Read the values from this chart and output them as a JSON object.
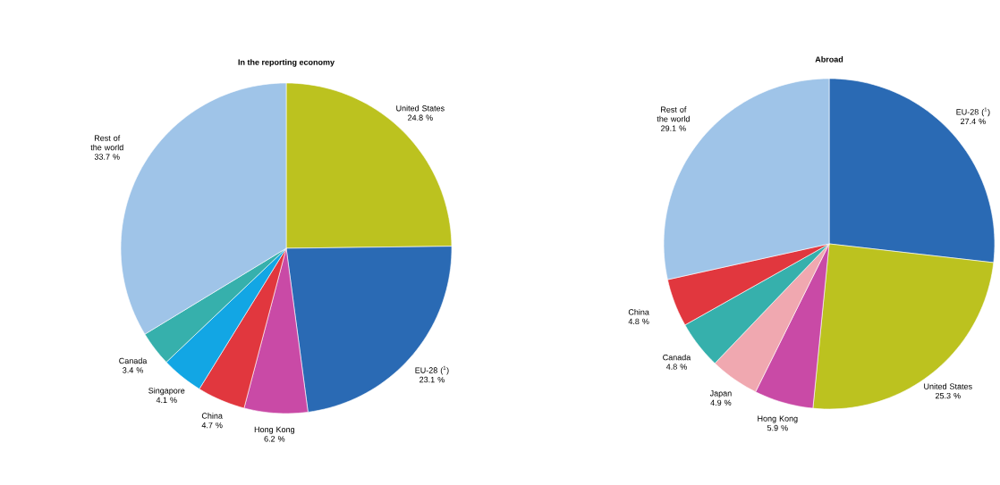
{
  "chart_data": [
    {
      "type": "pie",
      "title": "In the reporting economy",
      "categories": [
        "United States",
        "EU-28 ($^{1}$)",
        "Hong Kong",
        "China",
        "Singapore",
        "Canada",
        "Rest of the world"
      ],
      "values": [
        24.8,
        23.1,
        6.2,
        4.7,
        4.1,
        3.4,
        33.7
      ],
      "value_labels": [
        "24.8 %",
        "23.1 %",
        "6.2 %",
        "4.7 %",
        "4.1 %",
        "3.4 %",
        "33.7 %"
      ],
      "colors": [
        "#bcc21f",
        "#2a6ab4",
        "#c94aa6",
        "#e1373e",
        "#12a6e4",
        "#36b0ac",
        "#9fc4e8"
      ]
    },
    {
      "type": "pie",
      "title": "Abroad",
      "categories": [
        "EU-28 ($^{1}$)",
        "United States",
        "Hong Kong",
        "Japan",
        "Canada",
        "China",
        "Rest of the world"
      ],
      "values": [
        27.4,
        25.3,
        5.9,
        4.9,
        4.8,
        4.8,
        29.1
      ],
      "value_labels": [
        "27.4 %",
        "25.3 %",
        "5.9 %",
        "4.9 %",
        "4.8 %",
        "4.8 %",
        "29.1 %"
      ],
      "colors": [
        "#2a6ab4",
        "#bcc21f",
        "#c94aa6",
        "#f0a8b0",
        "#36b0ac",
        "#e1373e",
        "#9fc4e8"
      ]
    }
  ]
}
